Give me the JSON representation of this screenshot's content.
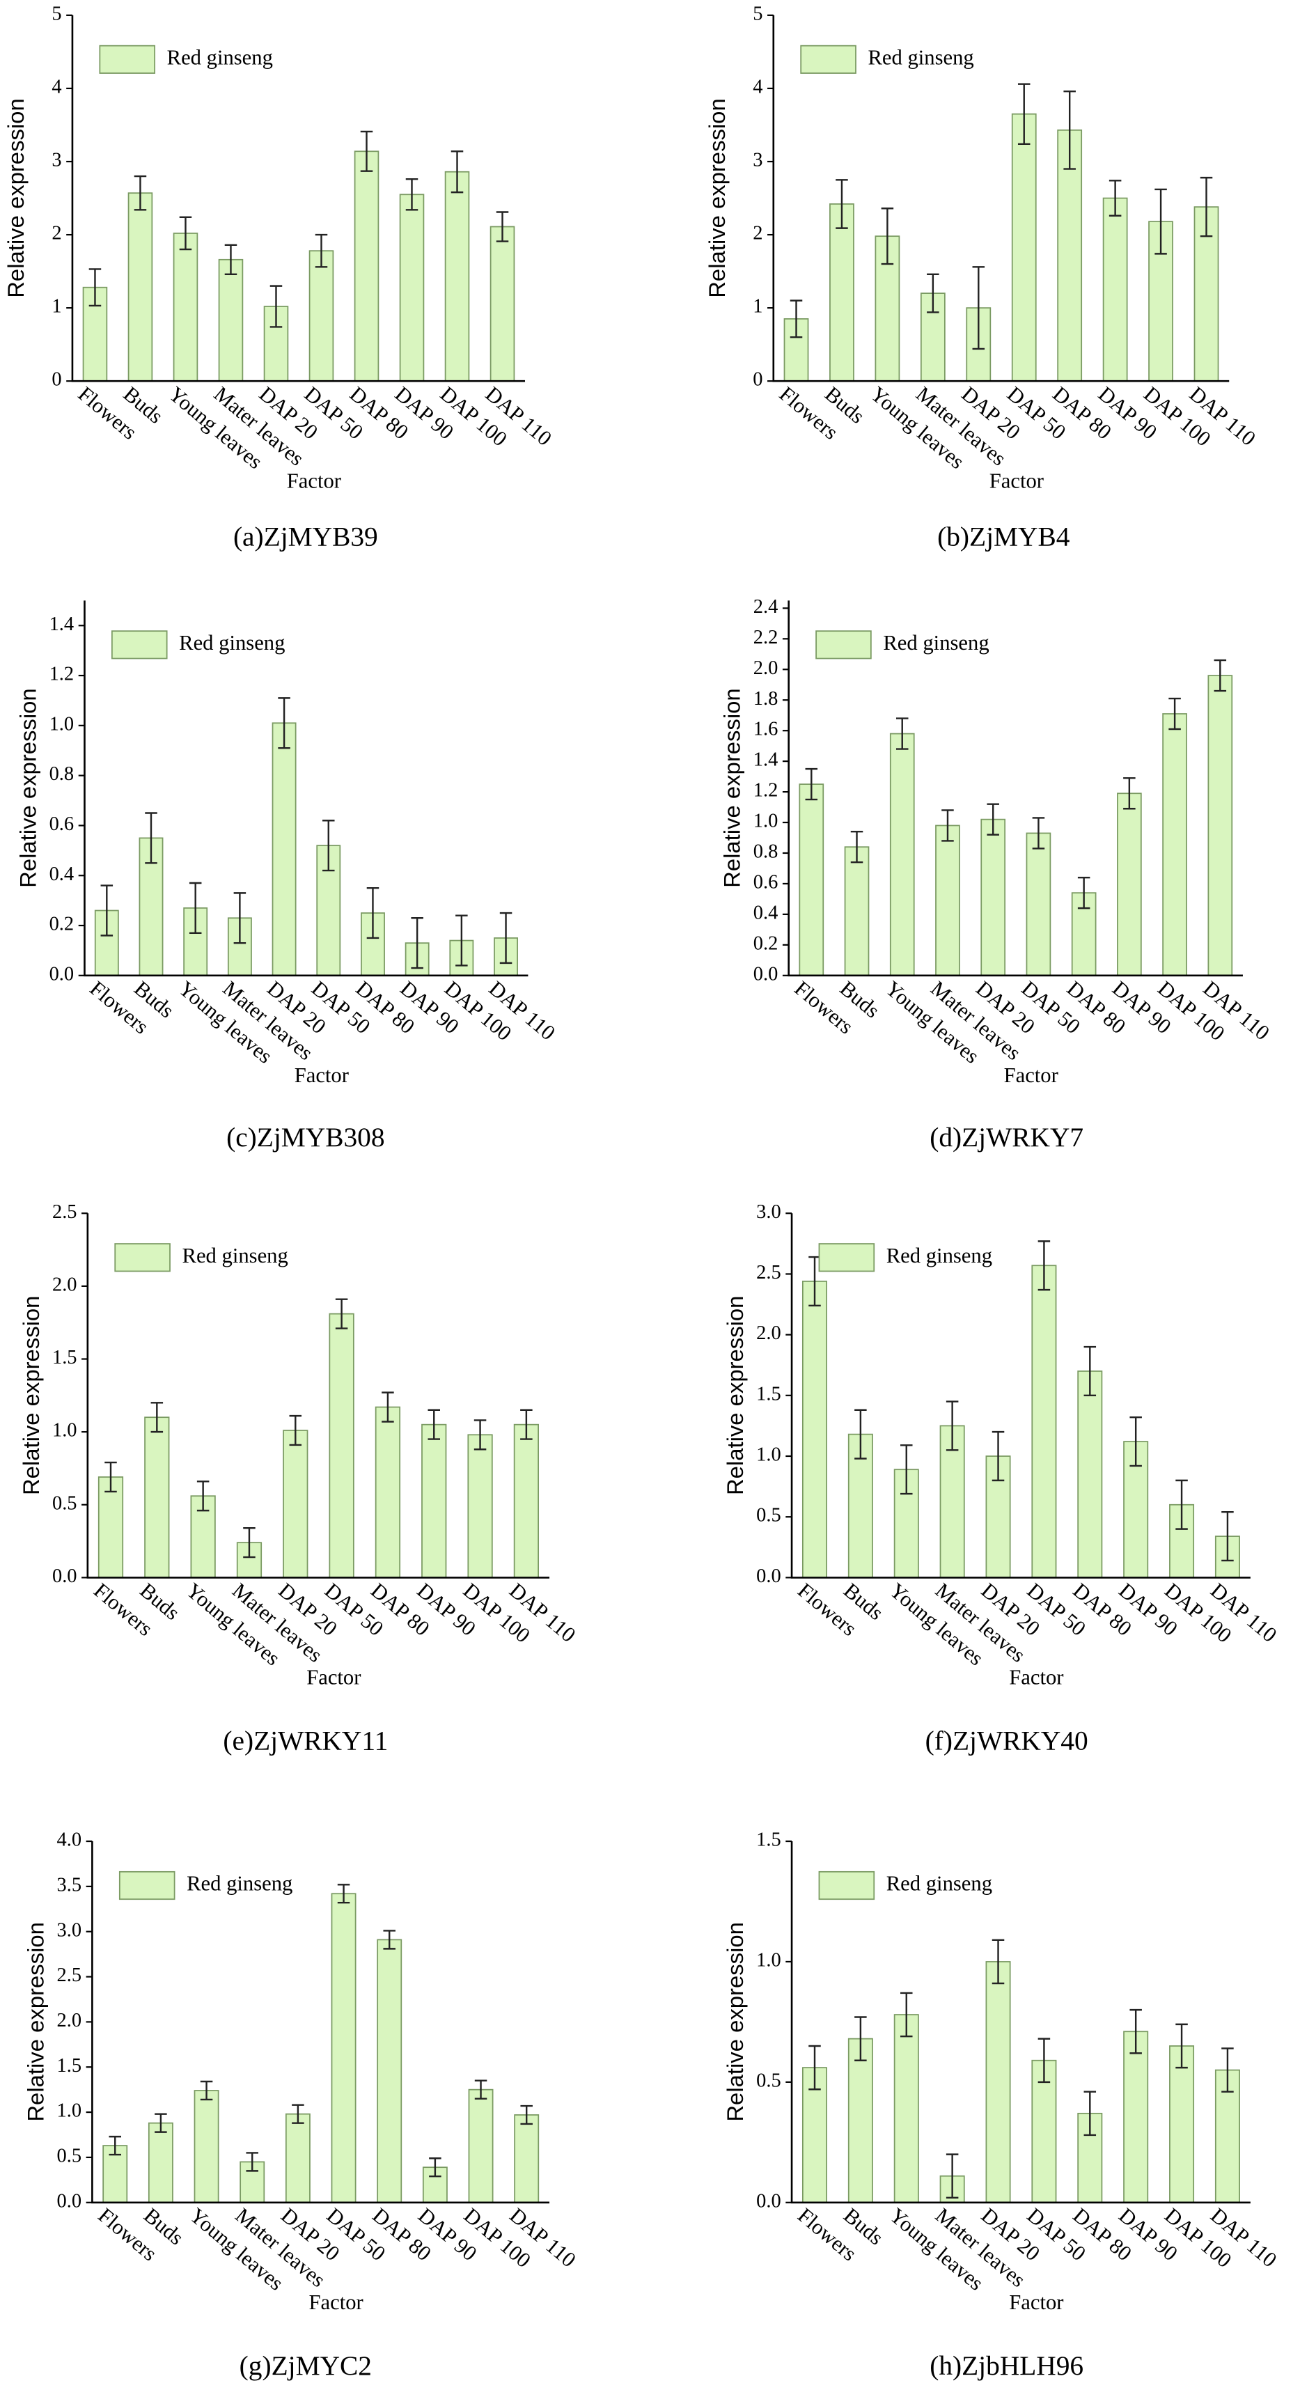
{
  "chart_data": [
    {
      "type": "bar",
      "title": "(a)ZjMYB39",
      "y_label": "Relative expression",
      "x_label": "Factor",
      "categories": [
        "Flowers",
        "Buds",
        "Young leaves",
        "Mater leaves",
        "DAP 20",
        "DAP 50",
        "DAP 80",
        "DAP 90",
        "DAP 100",
        "DAP 110"
      ],
      "series": [
        {
          "name": "Red ginseng",
          "color": "#d9f5bf",
          "values": [
            1.28,
            2.57,
            2.02,
            1.66,
            1.02,
            1.78,
            3.14,
            2.55,
            2.86,
            2.11
          ],
          "errors": [
            0.25,
            0.23,
            0.22,
            0.2,
            0.28,
            0.22,
            0.27,
            0.21,
            0.28,
            0.2
          ]
        }
      ],
      "ylim": [
        0,
        5
      ],
      "yticks": [
        0,
        1,
        2,
        3,
        4,
        5
      ]
    },
    {
      "type": "bar",
      "title": "(b)ZjMYB4",
      "y_label": "Relative expression",
      "x_label": "Factor",
      "categories": [
        "Flowers",
        "Buds",
        "Young leaves",
        "Mater leaves",
        "DAP 20",
        "DAP 50",
        "DAP 80",
        "DAP 90",
        "DAP 100",
        "DAP 110"
      ],
      "series": [
        {
          "name": "Red ginseng",
          "color": "#d9f5bf",
          "values": [
            0.85,
            2.42,
            1.98,
            1.2,
            1.0,
            3.65,
            3.43,
            2.5,
            2.18,
            2.38
          ],
          "errors": [
            0.25,
            0.33,
            0.38,
            0.26,
            0.56,
            0.41,
            0.53,
            0.24,
            0.44,
            0.4
          ]
        }
      ],
      "ylim": [
        0,
        5
      ],
      "yticks": [
        0,
        1,
        2,
        3,
        4,
        5
      ]
    },
    {
      "type": "bar",
      "title": "(c)ZjMYB308",
      "y_label": "Relative expression",
      "x_label": "Factor",
      "categories": [
        "Flowers",
        "Buds",
        "Young leaves",
        "Mater leaves",
        "DAP 20",
        "DAP 50",
        "DAP 80",
        "DAP 90",
        "DAP 100",
        "DAP 110"
      ],
      "series": [
        {
          "name": "Red ginseng",
          "color": "#d9f5bf",
          "values": [
            0.26,
            0.55,
            0.27,
            0.23,
            1.01,
            0.52,
            0.25,
            0.13,
            0.14,
            0.15
          ],
          "errors": [
            0.1,
            0.1,
            0.1,
            0.1,
            0.1,
            0.1,
            0.1,
            0.1,
            0.1,
            0.1
          ]
        }
      ],
      "ylim": [
        0,
        1.5
      ],
      "yticks": [
        {
          "value": 0,
          "label": "0.0"
        },
        0.2,
        0.4,
        0.6,
        0.8,
        {
          "value": 1,
          "label": "1.0"
        },
        1.2,
        1.4
      ]
    },
    {
      "type": "bar",
      "title": "(d)ZjWRKY7",
      "y_label": "Relative expression",
      "x_label": "Factor",
      "categories": [
        "Flowers",
        "Buds",
        "Young leaves",
        "Mater leaves",
        "DAP 20",
        "DAP 50",
        "DAP 80",
        "DAP 90",
        "DAP 100",
        "DAP 110"
      ],
      "series": [
        {
          "name": "Red ginseng",
          "color": "#d9f5bf",
          "values": [
            1.25,
            0.84,
            1.58,
            0.98,
            1.02,
            0.93,
            0.54,
            1.19,
            1.71,
            1.96
          ],
          "errors": [
            0.1,
            0.1,
            0.1,
            0.1,
            0.1,
            0.1,
            0.1,
            0.1,
            0.1,
            0.1
          ]
        }
      ],
      "ylim": [
        0,
        2.45
      ],
      "yticks": [
        {
          "value": 0,
          "label": "0.0"
        },
        0.2,
        0.4,
        0.6,
        0.8,
        {
          "value": 1,
          "label": "1.0"
        },
        1.2,
        1.4,
        1.6,
        1.8,
        {
          "value": 2,
          "label": "2.0"
        },
        2.2,
        2.4
      ]
    },
    {
      "type": "bar",
      "title": "(e)ZjWRKY11",
      "y_label": "Relative expression",
      "x_label": "Factor",
      "categories": [
        "Flowers",
        "Buds",
        "Young leaves",
        "Mater leaves",
        "DAP 20",
        "DAP 50",
        "DAP 80",
        "DAP 90",
        "DAP 100",
        "DAP 110"
      ],
      "series": [
        {
          "name": "Red ginseng",
          "color": "#d9f5bf",
          "values": [
            0.69,
            1.1,
            0.56,
            0.24,
            1.01,
            1.81,
            1.17,
            1.05,
            0.98,
            1.05
          ],
          "errors": [
            0.1,
            0.1,
            0.1,
            0.1,
            0.1,
            0.1,
            0.1,
            0.1,
            0.1,
            0.1
          ]
        }
      ],
      "ylim": [
        0,
        2.5
      ],
      "yticks": [
        {
          "value": 0,
          "label": "0.0"
        },
        0.5,
        {
          "value": 1,
          "label": "1.0"
        },
        1.5,
        {
          "value": 2,
          "label": "2.0"
        },
        2.5
      ]
    },
    {
      "type": "bar",
      "title": "(f)ZjWRKY40",
      "y_label": "Relative expression",
      "x_label": "Factor",
      "categories": [
        "Flowers",
        "Buds",
        "Young leaves",
        "Mater leaves",
        "DAP 20",
        "DAP 50",
        "DAP 80",
        "DAP 90",
        "DAP 100",
        "DAP 110"
      ],
      "series": [
        {
          "name": "Red ginseng",
          "color": "#d9f5bf",
          "values": [
            2.44,
            1.18,
            0.89,
            1.25,
            1.0,
            2.57,
            1.7,
            1.12,
            0.6,
            0.34
          ],
          "errors": [
            0.2,
            0.2,
            0.2,
            0.2,
            0.2,
            0.2,
            0.2,
            0.2,
            0.2,
            0.2
          ]
        }
      ],
      "ylim": [
        0,
        3
      ],
      "yticks": [
        {
          "value": 0,
          "label": "0.0"
        },
        0.5,
        {
          "value": 1,
          "label": "1.0"
        },
        1.5,
        {
          "value": 2,
          "label": "2.0"
        },
        2.5,
        {
          "value": 3,
          "label": "3.0"
        }
      ]
    },
    {
      "type": "bar",
      "title": "(g)ZjMYC2",
      "y_label": "Relative expression",
      "x_label": "Factor",
      "categories": [
        "Flowers",
        "Buds",
        "Young leaves",
        "Mater leaves",
        "DAP 20",
        "DAP 50",
        "DAP 80",
        "DAP 90",
        "DAP 100",
        "DAP 110"
      ],
      "series": [
        {
          "name": "Red ginseng",
          "color": "#d9f5bf",
          "values": [
            0.63,
            0.88,
            1.24,
            0.45,
            0.98,
            3.42,
            2.91,
            0.39,
            1.25,
            0.97
          ],
          "errors": [
            0.1,
            0.1,
            0.1,
            0.1,
            0.1,
            0.1,
            0.1,
            0.1,
            0.1,
            0.1
          ]
        }
      ],
      "ylim": [
        0,
        4
      ],
      "yticks": [
        {
          "value": 0,
          "label": "0.0"
        },
        0.5,
        {
          "value": 1,
          "label": "1.0"
        },
        1.5,
        {
          "value": 2,
          "label": "2.0"
        },
        2.5,
        {
          "value": 3,
          "label": "3.0"
        },
        3.5,
        {
          "value": 4,
          "label": "4.0"
        }
      ]
    },
    {
      "type": "bar",
      "title": "(h)ZjbHLH96",
      "y_label": "Relative expression",
      "x_label": "Factor",
      "categories": [
        "Flowers",
        "Buds",
        "Young leaves",
        "Mater leaves",
        "DAP 20",
        "DAP 50",
        "DAP 80",
        "DAP 90",
        "DAP 100",
        "DAP 110"
      ],
      "series": [
        {
          "name": "Red ginseng",
          "color": "#d9f5bf",
          "values": [
            0.56,
            0.68,
            0.78,
            0.11,
            1.0,
            0.59,
            0.37,
            0.71,
            0.65,
            0.55
          ],
          "errors": [
            0.09,
            0.09,
            0.09,
            0.09,
            0.09,
            0.09,
            0.09,
            0.09,
            0.09,
            0.09
          ]
        }
      ],
      "ylim": [
        0,
        1.5
      ],
      "yticks": [
        {
          "value": 0,
          "label": "0.0"
        },
        0.5,
        {
          "value": 1,
          "label": "1.0"
        },
        1.5
      ]
    }
  ]
}
